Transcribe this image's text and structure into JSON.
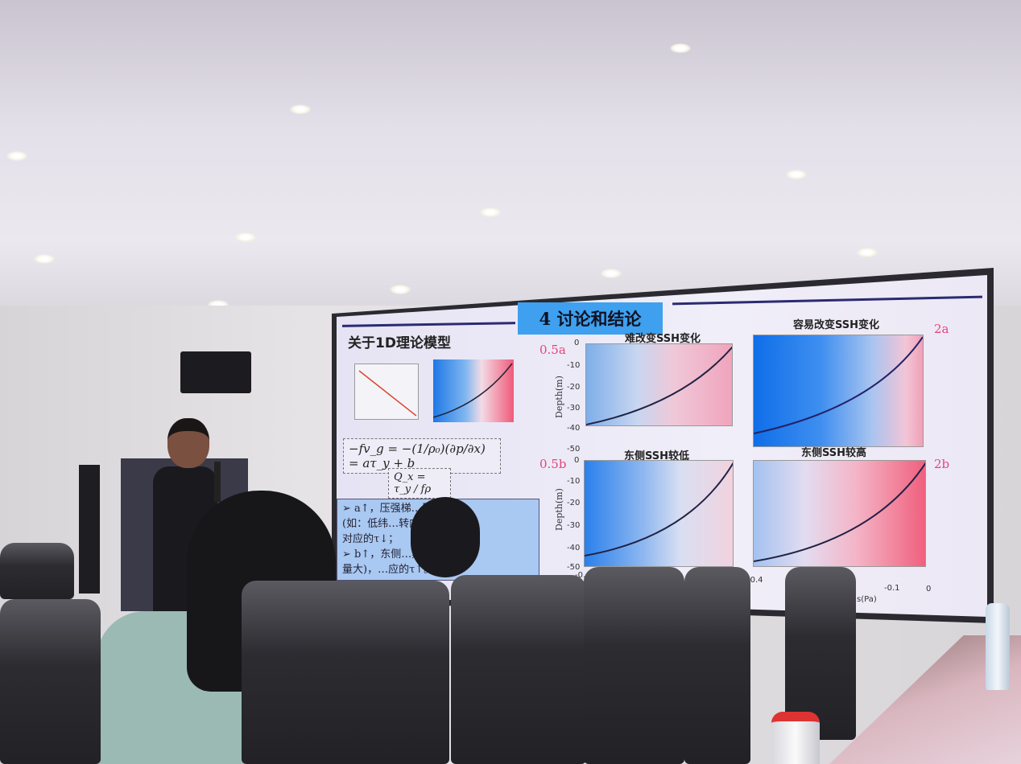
{
  "slide": {
    "title": "4 讨论和结论",
    "subtitle": "关于1D理论模型",
    "equation1": "−fv_g = −(1/ρ₀)(∂p/∂x) = aτ_y + b",
    "equation2": "Q_x = τ_y / fρ",
    "bullets": [
      "➢ a↑，压强梯…风影响",
      "(如：低纬…转向流",
      "对应的τ↓；",
      "➢ b↑，东侧…黑潮流",
      "量大)，…应的τ↑。"
    ],
    "panels": [
      {
        "title": "难改变SSH变化",
        "label": "0.5a"
      },
      {
        "title": "容易改变SSH变化",
        "label": "2a"
      },
      {
        "title": "东侧SSH较低",
        "label": "0.5b"
      },
      {
        "title": "东侧SSH较高",
        "label": "2b"
      }
    ],
    "y_axis_label": "Depth(m)",
    "y_ticks": [
      "0",
      "-10",
      "-20",
      "-30",
      "-40",
      "-50"
    ],
    "x_ticks_left": [
      "-0.4"
    ],
    "x_ticks_right": [
      "-0.4",
      "-0.1",
      "0"
    ],
    "x_axis_label_fragment": "s(Pa)",
    "colors": {
      "title_box": "#3ea0ee",
      "cold": "#1e78e6",
      "warm": "#f05a78",
      "label": "#e5457a"
    }
  }
}
